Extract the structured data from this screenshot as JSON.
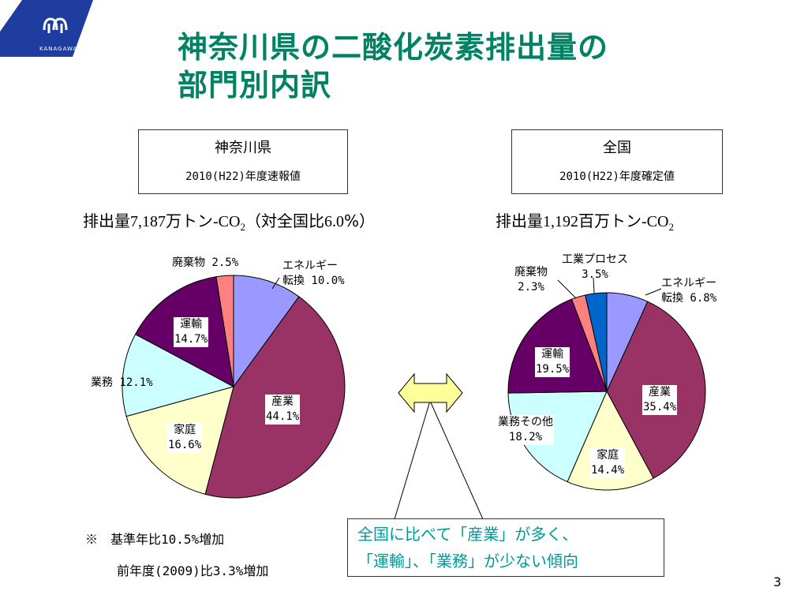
{
  "logo": {
    "text": "KANAGAWA",
    "color": "#1f3d9f"
  },
  "title": "神奈川県の二酸化炭素排出量の\n部門別内訳",
  "panels": {
    "kanagawa": {
      "box_title": "神奈川県",
      "box_sub": "2010(H22)年度速報値",
      "emission_prefix": "排出量",
      "emission_value": "7,187",
      "emission_unit": "万トン",
      "co2": "-CO",
      "co2_sub": "2",
      "emission_suffix": "（対全国比",
      "ratio_value": "6.0",
      "ratio_end": "%）"
    },
    "national": {
      "box_title": "全国",
      "box_sub": "2010(H22)年度確定値",
      "emission_prefix": "排出量",
      "emission_value": "1,192",
      "emission_unit": "百万トン",
      "co2": "-CO",
      "co2_sub": "2"
    }
  },
  "chart_data": [
    {
      "type": "pie",
      "title": "神奈川県",
      "slices": [
        {
          "label": "エネルギー\n転換 10.0%",
          "value": 10.0,
          "color": "#9999ff"
        },
        {
          "label": "産業\n44.1%",
          "value": 44.1,
          "color": "#993366"
        },
        {
          "label": "家庭\n16.6%",
          "value": 16.6,
          "color": "#ffffcc"
        },
        {
          "label": "業務 12.1%",
          "value": 12.1,
          "color": "#ccffff"
        },
        {
          "label": "運輸\n14.7%",
          "value": 14.7,
          "color": "#660066"
        },
        {
          "label": "廃棄物 2.5%",
          "value": 2.5,
          "color": "#ff8080"
        }
      ]
    },
    {
      "type": "pie",
      "title": "全国",
      "slices": [
        {
          "label": "エネルギー\n転換 6.8%",
          "value": 6.8,
          "color": "#9999ff"
        },
        {
          "label": "産業\n35.4%",
          "value": 35.4,
          "color": "#993366"
        },
        {
          "label": "家庭\n14.4%",
          "value": 14.4,
          "color": "#ffffcc"
        },
        {
          "label": "業務その他\n18.2%",
          "value": 18.2,
          "color": "#ccffff"
        },
        {
          "label": "運輸\n19.5%",
          "value": 19.5,
          "color": "#660066"
        },
        {
          "label": "廃棄物\n2.3%",
          "value": 2.3,
          "color": "#ff8080"
        },
        {
          "label": "工業プロセス\n3.5%",
          "value": 3.5,
          "color": "#0066cc"
        }
      ]
    }
  ],
  "notes": {
    "line1": "※　基準年比10.5%増加",
    "line2": "前年度(2009)比3.3%増加"
  },
  "callout": "全国に比べて「産業」が多く、\n「運輸」、「業務」が少ない傾向",
  "arrow_color": "#ffff99",
  "page_number": "3"
}
